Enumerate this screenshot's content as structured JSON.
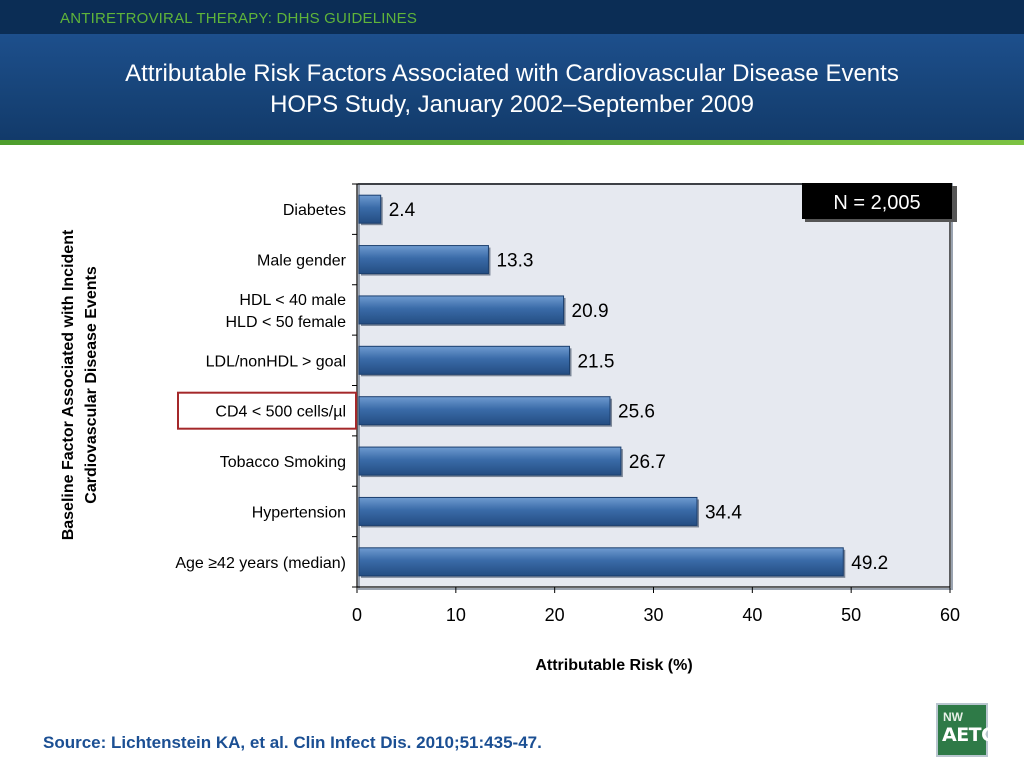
{
  "header": {
    "category": "ANTIRETROVIRAL THERAPY: DHHS GUIDELINES",
    "title_line1": "Attributable Risk Factors Associated with Cardiovascular Disease Events",
    "title_line2": "HOPS Study, January 2002–September 2009"
  },
  "chart_data": {
    "type": "bar",
    "orientation": "horizontal",
    "categories": [
      "Diabetes",
      "Male gender",
      "HDL < 40 male\nHLD < 50 female",
      "LDL/nonHDL > goal",
      "CD4 < 500 cells/µl",
      "Tobacco Smoking",
      "Hypertension",
      "Age ≥42 years (median)"
    ],
    "values": [
      2.4,
      13.3,
      20.9,
      21.5,
      25.6,
      26.7,
      34.4,
      49.2
    ],
    "data_labels": [
      "2.4",
      "13.3",
      "20.9",
      "21.5",
      "25.6",
      "26.7",
      "34.4",
      "49.2"
    ],
    "highlighted_category": "CD4 < 500 cells/µl",
    "xlabel": "Attributable Risk (%)",
    "ylabel_line1": "Baseline Factor Associated with Incident",
    "ylabel_line2": "Cardiovascular Disease Events",
    "xlim": [
      0,
      60
    ],
    "xticks": [
      0,
      10,
      20,
      30,
      40,
      50,
      60
    ],
    "annotation": "N = 2,005",
    "grid": false,
    "colors": {
      "bar": "#3a6ba8",
      "bar_edge": "#1c3f6e",
      "plot_bg": "#e6e9f0",
      "highlight_box": "#a4282a",
      "annotation_bg": "#000000",
      "annotation_text": "#ffffff"
    }
  },
  "footer": {
    "source": "Source: Lichtenstein KA, et al.  Clin Infect Dis. 2010;51:435-47.",
    "logo_top": "NW",
    "logo_bottom": "AETC"
  }
}
